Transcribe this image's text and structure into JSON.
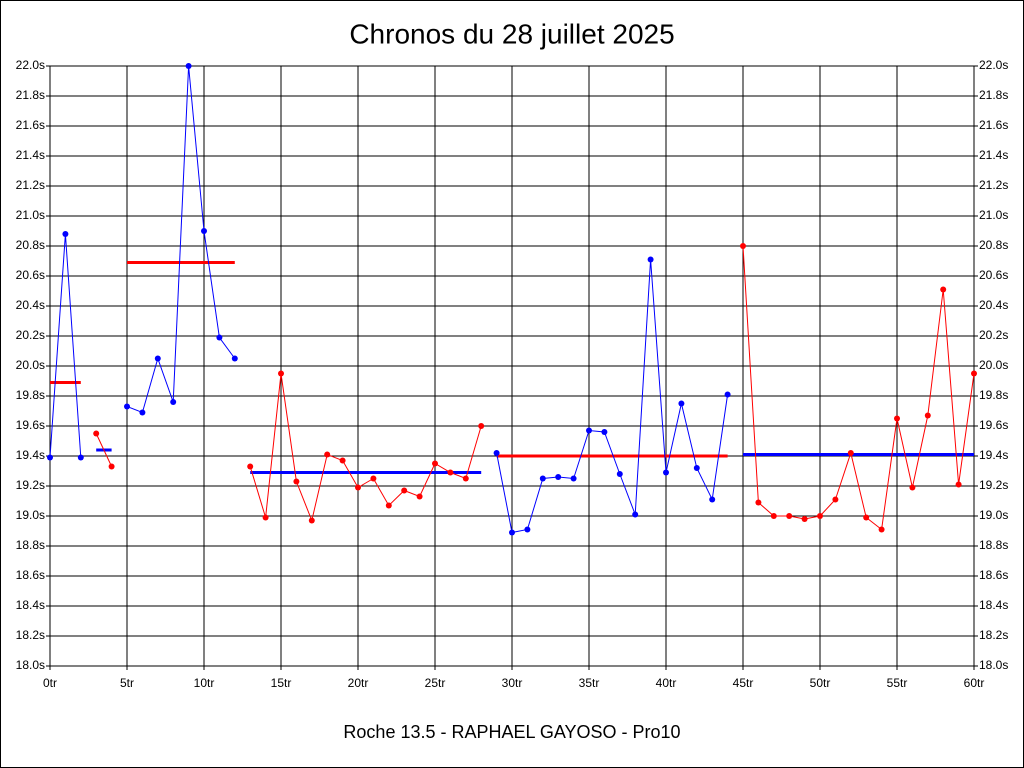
{
  "chart_data": {
    "type": "line",
    "title": "Chronos du 28 juillet 2025",
    "subtitle": "Roche 13.5 - RAPHAEL GAYOSO - Pro10",
    "xlim": [
      0,
      60
    ],
    "ylim": [
      18.0,
      22.0
    ],
    "grid": true,
    "xticks": [
      {
        "value": 0,
        "label": "0tr"
      },
      {
        "value": 5,
        "label": "5tr"
      },
      {
        "value": 10,
        "label": "10tr"
      },
      {
        "value": 15,
        "label": "15tr"
      },
      {
        "value": 20,
        "label": "20tr"
      },
      {
        "value": 25,
        "label": "25tr"
      },
      {
        "value": 30,
        "label": "30tr"
      },
      {
        "value": 35,
        "label": "35tr"
      },
      {
        "value": 40,
        "label": "40tr"
      },
      {
        "value": 45,
        "label": "45tr"
      },
      {
        "value": 50,
        "label": "50tr"
      },
      {
        "value": 55,
        "label": "55tr"
      },
      {
        "value": 60,
        "label": "60tr"
      }
    ],
    "yticks": [
      {
        "value": 18.0,
        "label": "18.0s"
      },
      {
        "value": 18.2,
        "label": "18.2s"
      },
      {
        "value": 18.4,
        "label": "18.4s"
      },
      {
        "value": 18.6,
        "label": "18.6s"
      },
      {
        "value": 18.8,
        "label": "18.8s"
      },
      {
        "value": 19.0,
        "label": "19.0s"
      },
      {
        "value": 19.2,
        "label": "19.2s"
      },
      {
        "value": 19.4,
        "label": "19.4s"
      },
      {
        "value": 19.6,
        "label": "19.6s"
      },
      {
        "value": 19.8,
        "label": "19.8s"
      },
      {
        "value": 20.0,
        "label": "20.0s"
      },
      {
        "value": 20.2,
        "label": "20.2s"
      },
      {
        "value": 20.4,
        "label": "20.4s"
      },
      {
        "value": 20.6,
        "label": "20.6s"
      },
      {
        "value": 20.8,
        "label": "20.8s"
      },
      {
        "value": 21.0,
        "label": "21.0s"
      },
      {
        "value": 21.2,
        "label": "21.2s"
      },
      {
        "value": 21.4,
        "label": "21.4s"
      },
      {
        "value": 21.6,
        "label": "21.6s"
      },
      {
        "value": 21.8,
        "label": "21.8s"
      },
      {
        "value": 22.0,
        "label": "22.0s"
      }
    ],
    "series": [
      {
        "color": "#0000ff",
        "avg_color": "#ff0000",
        "x": [
          0,
          1,
          2
        ],
        "values": [
          19.39,
          20.88,
          19.39
        ],
        "avg": 19.89
      },
      {
        "color": "#ff0000",
        "avg_color": "#0000ff",
        "x": [
          3,
          4
        ],
        "values": [
          19.55,
          19.33
        ],
        "avg": 19.44
      },
      {
        "color": "#0000ff",
        "avg_color": "#ff0000",
        "x": [
          5,
          6,
          7,
          8,
          9,
          10,
          11,
          12
        ],
        "values": [
          19.73,
          19.69,
          20.05,
          19.76,
          22.0,
          20.9,
          20.19,
          20.05
        ],
        "avg": 20.69
      },
      {
        "color": "#ff0000",
        "avg_color": "#0000ff",
        "x": [
          13,
          14,
          15,
          16,
          17,
          18,
          19,
          20,
          21,
          22,
          23,
          24,
          25,
          26,
          27,
          28
        ],
        "values": [
          19.33,
          18.99,
          19.95,
          19.23,
          18.97,
          19.41,
          19.37,
          19.19,
          19.25,
          19.07,
          19.17,
          19.13,
          19.35,
          19.29,
          19.25,
          19.6
        ],
        "avg": 19.29
      },
      {
        "color": "#0000ff",
        "avg_color": "#ff0000",
        "x": [
          29,
          30,
          31,
          32,
          33,
          34,
          35,
          36,
          37,
          38,
          39,
          40,
          41,
          42,
          43,
          44
        ],
        "values": [
          19.42,
          18.89,
          18.91,
          19.25,
          19.26,
          19.25,
          19.57,
          19.56,
          19.28,
          19.01,
          20.71,
          19.29,
          19.75,
          19.32,
          19.11,
          19.81
        ],
        "avg": 19.4
      },
      {
        "color": "#ff0000",
        "avg_color": "#0000ff",
        "x": [
          45,
          46,
          47,
          48,
          49,
          50,
          51,
          52,
          53,
          54,
          55,
          56,
          57,
          58,
          59,
          60
        ],
        "values": [
          20.8,
          19.09,
          19.0,
          19.0,
          18.98,
          19.0,
          19.11,
          19.42,
          18.99,
          18.91,
          19.65,
          19.19,
          19.67,
          20.51,
          19.21,
          19.95
        ],
        "avg": 19.41
      }
    ]
  }
}
